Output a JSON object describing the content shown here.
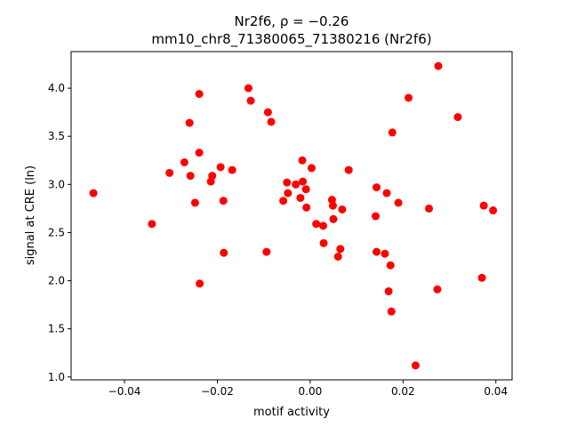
{
  "chart_data": {
    "type": "scatter",
    "title_line1": "Nr2f6, ρ = −0.26",
    "title_line2": "mm10_chr8_71380065_71380216 (Nr2f6)",
    "xlabel": "motif activity",
    "ylabel": "signal at CRE (ln)",
    "xlim": [
      -0.0515,
      0.0435
    ],
    "ylim": [
      0.97,
      4.38
    ],
    "x_ticks": [
      {
        "value": -0.04,
        "label": "−0.04"
      },
      {
        "value": -0.02,
        "label": "−0.02"
      },
      {
        "value": 0.0,
        "label": "0.00"
      },
      {
        "value": 0.02,
        "label": "0.02"
      },
      {
        "value": 0.04,
        "label": "0.04"
      }
    ],
    "y_ticks": [
      {
        "value": 1.0,
        "label": "1.0"
      },
      {
        "value": 1.5,
        "label": "1.5"
      },
      {
        "value": 2.0,
        "label": "2.0"
      },
      {
        "value": 2.5,
        "label": "2.5"
      },
      {
        "value": 3.0,
        "label": "3.0"
      },
      {
        "value": 3.5,
        "label": "3.5"
      },
      {
        "value": 4.0,
        "label": "4.0"
      }
    ],
    "grid": false,
    "marker_color": "#ff0000",
    "points": [
      {
        "x": -0.0467,
        "y": 2.91
      },
      {
        "x": -0.0341,
        "y": 2.59
      },
      {
        "x": -0.0303,
        "y": 3.12
      },
      {
        "x": -0.0271,
        "y": 3.23
      },
      {
        "x": -0.026,
        "y": 3.64
      },
      {
        "x": -0.0258,
        "y": 3.09
      },
      {
        "x": -0.0248,
        "y": 2.81
      },
      {
        "x": -0.0239,
        "y": 3.94
      },
      {
        "x": -0.0239,
        "y": 3.33
      },
      {
        "x": -0.0238,
        "y": 1.97
      },
      {
        "x": -0.0214,
        "y": 3.03
      },
      {
        "x": -0.0211,
        "y": 3.09
      },
      {
        "x": -0.0193,
        "y": 3.18
      },
      {
        "x": -0.0187,
        "y": 2.83
      },
      {
        "x": -0.0186,
        "y": 2.29
      },
      {
        "x": -0.0168,
        "y": 3.15
      },
      {
        "x": -0.0133,
        "y": 4.0
      },
      {
        "x": -0.0128,
        "y": 3.87
      },
      {
        "x": -0.0094,
        "y": 2.3
      },
      {
        "x": -0.0091,
        "y": 3.75
      },
      {
        "x": -0.0084,
        "y": 3.65
      },
      {
        "x": -0.0058,
        "y": 2.83
      },
      {
        "x": -0.005,
        "y": 3.02
      },
      {
        "x": -0.0048,
        "y": 2.91
      },
      {
        "x": -0.0031,
        "y": 3.0
      },
      {
        "x": -0.0021,
        "y": 2.86
      },
      {
        "x": -0.0017,
        "y": 3.25
      },
      {
        "x": -0.0016,
        "y": 3.03
      },
      {
        "x": -0.0009,
        "y": 2.95
      },
      {
        "x": -0.0008,
        "y": 2.76
      },
      {
        "x": 0.0003,
        "y": 3.17
      },
      {
        "x": 0.0013,
        "y": 2.59
      },
      {
        "x": 0.0028,
        "y": 2.57
      },
      {
        "x": 0.0029,
        "y": 2.39
      },
      {
        "x": 0.0047,
        "y": 2.84
      },
      {
        "x": 0.0049,
        "y": 2.78
      },
      {
        "x": 0.005,
        "y": 2.64
      },
      {
        "x": 0.006,
        "y": 2.25
      },
      {
        "x": 0.0065,
        "y": 2.33
      },
      {
        "x": 0.0069,
        "y": 2.74
      },
      {
        "x": 0.0083,
        "y": 3.15
      },
      {
        "x": 0.0141,
        "y": 2.67
      },
      {
        "x": 0.0143,
        "y": 2.97
      },
      {
        "x": 0.0143,
        "y": 2.3
      },
      {
        "x": 0.0161,
        "y": 2.28
      },
      {
        "x": 0.0165,
        "y": 2.91
      },
      {
        "x": 0.0169,
        "y": 1.89
      },
      {
        "x": 0.0173,
        "y": 2.16
      },
      {
        "x": 0.0175,
        "y": 1.68
      },
      {
        "x": 0.0177,
        "y": 3.54
      },
      {
        "x": 0.019,
        "y": 2.81
      },
      {
        "x": 0.0212,
        "y": 3.9
      },
      {
        "x": 0.0227,
        "y": 1.12
      },
      {
        "x": 0.0256,
        "y": 2.75
      },
      {
        "x": 0.0274,
        "y": 1.91
      },
      {
        "x": 0.0276,
        "y": 4.23
      },
      {
        "x": 0.0318,
        "y": 3.7
      },
      {
        "x": 0.037,
        "y": 2.03
      },
      {
        "x": 0.0374,
        "y": 2.78
      },
      {
        "x": 0.0394,
        "y": 2.73
      }
    ]
  }
}
